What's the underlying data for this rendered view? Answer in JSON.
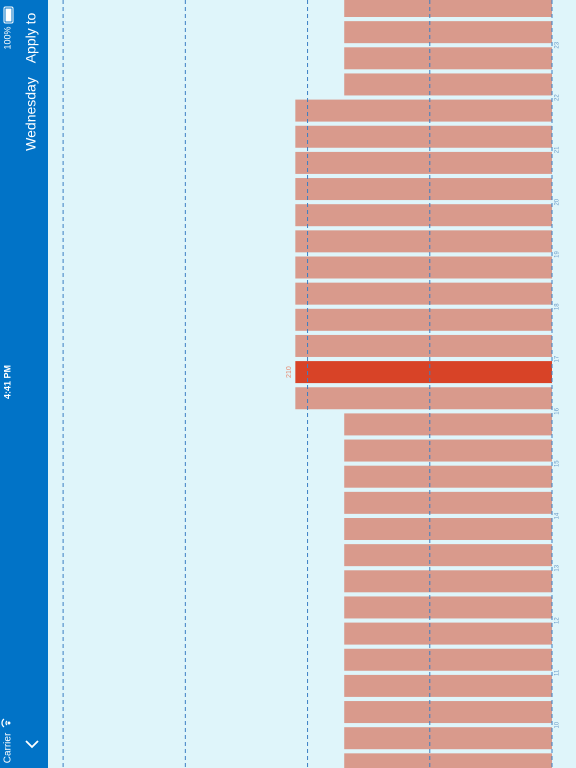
{
  "status_bar": {
    "carrier": "Carrier",
    "time": "4:41 PM",
    "battery": "100%"
  },
  "nav": {
    "title": "Wednesday",
    "action": "Apply to"
  },
  "chart_data": {
    "type": "bar",
    "orientation": "horizontal",
    "values": [
      170,
      170,
      170,
      170,
      210,
      210,
      210,
      210,
      210,
      210,
      210,
      210,
      210,
      210,
      210,
      210,
      170,
      170,
      170,
      170,
      170,
      170,
      170,
      170,
      170,
      170,
      170,
      170,
      170,
      170
    ],
    "color": "#d99a8c",
    "highlight": {
      "index": 14,
      "color": "#d84327"
    },
    "hour_labels": [
      "23",
      "22",
      "21",
      "20",
      "19",
      "18",
      "17",
      "16",
      "15",
      "14",
      "13",
      "12",
      "11",
      "10"
    ],
    "xlim": [
      0,
      450
    ],
    "xticks": [
      0,
      100,
      200,
      300,
      400
    ],
    "grid": true
  }
}
